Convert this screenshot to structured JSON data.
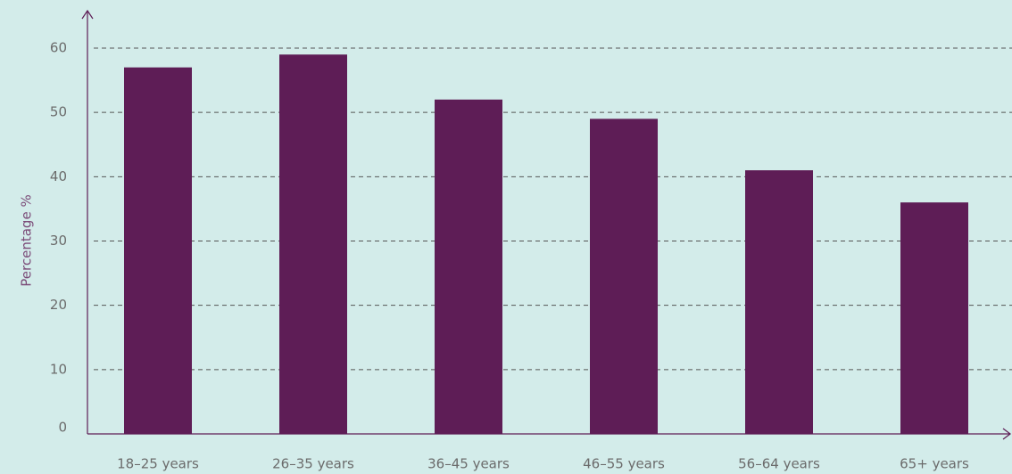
{
  "chart_data": {
    "type": "bar",
    "y_label": "Percentage %",
    "categories": [
      "18–25 years",
      "26–35 years",
      "36–45 years",
      "46–55 years",
      "56–64 years",
      "65+ years"
    ],
    "values": [
      57,
      59,
      52,
      49,
      41,
      36
    ],
    "color": "#5e1d56",
    "ylim": [
      0,
      60
    ],
    "yticks": [
      0,
      10,
      20,
      30,
      40,
      50,
      60
    ],
    "grid": true
  }
}
